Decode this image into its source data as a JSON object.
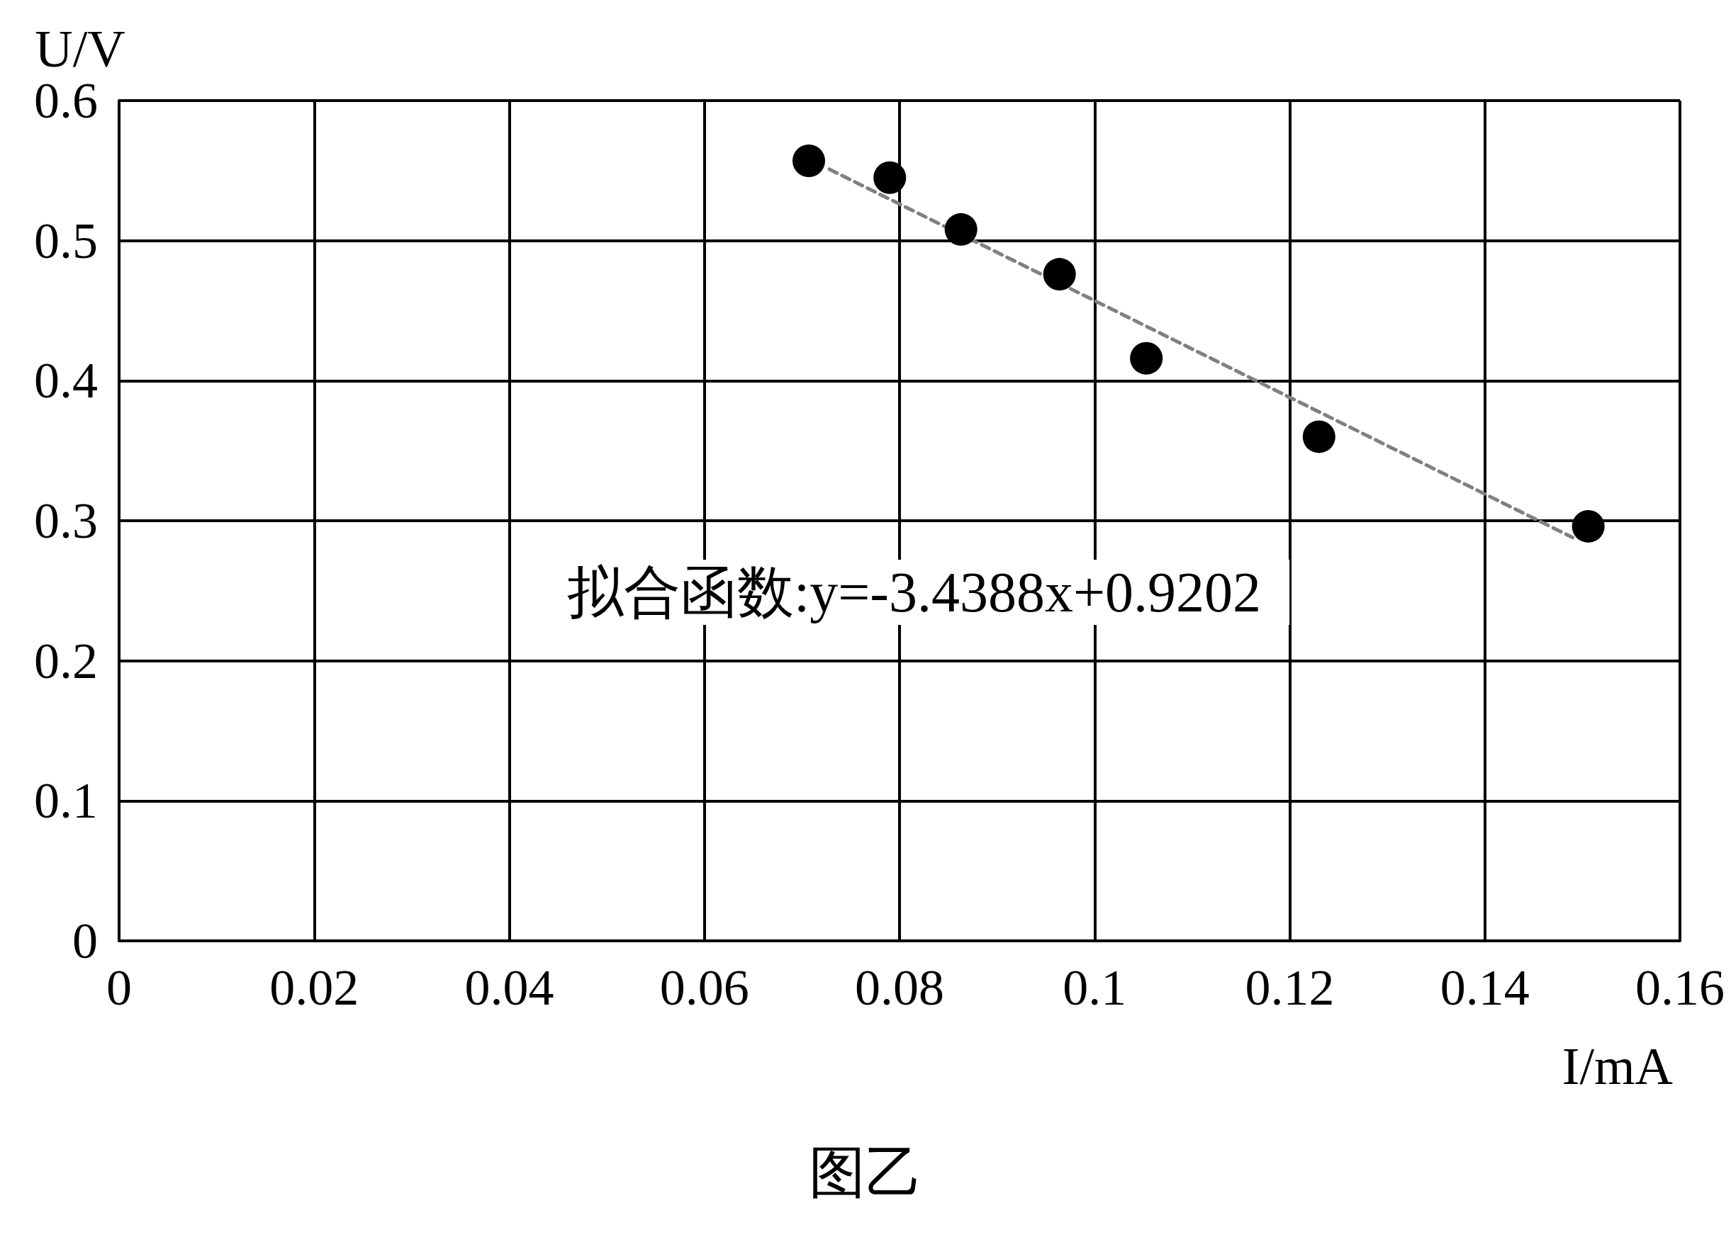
{
  "chart_data": {
    "type": "scatter",
    "xlabel": "I/mA",
    "ylabel": "U/V",
    "xlim": [
      0,
      0.16
    ],
    "xticks": [
      0,
      0.02,
      0.04,
      0.06,
      0.08,
      0.1,
      0.12,
      0.14,
      0.16
    ],
    "ylim": [
      0,
      0.6
    ],
    "yticks": [
      0,
      0.1,
      0.2,
      0.3,
      0.4,
      0.5,
      0.6
    ],
    "grid": true,
    "marker": "circle",
    "series": [
      {
        "color": "#000000",
        "x": [
          0.0707,
          0.079,
          0.0863,
          0.0964,
          0.1053,
          0.123,
          0.1506
        ],
        "values": [
          0.557,
          0.545,
          0.508,
          0.476,
          0.416,
          0.36,
          0.296
        ]
      },
      {
        "type": "line",
        "color": "#808080",
        "line_style": "dashed",
        "marker": "none",
        "x": [
          0.0728,
          0.149
        ],
        "values": [
          0.551,
          0.288
        ]
      }
    ],
    "annotations": [
      "拟合函数:y=-3.4388x+0.9202",
      "图乙"
    ]
  }
}
